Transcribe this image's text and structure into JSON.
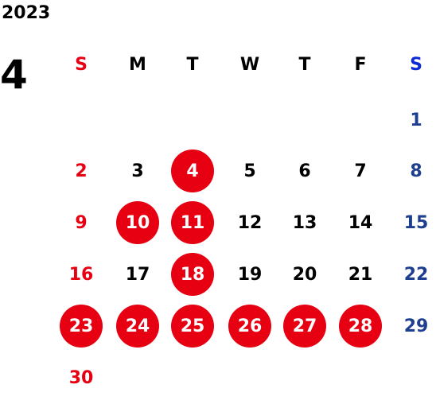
{
  "calendar": {
    "year": "2023",
    "month": "4",
    "weekdays": [
      "S",
      "M",
      "T",
      "W",
      "T",
      "F",
      "S"
    ],
    "first_weekday_index": 6,
    "days_in_month": 30,
    "highlighted_days": [
      4,
      10,
      11,
      18,
      23,
      24,
      25,
      26,
      27,
      28
    ],
    "colors": {
      "sunday": "#e60012",
      "saturday": "#1e3e8f",
      "saturday_header": "#0a2bd6",
      "weekday": "#000000",
      "highlight": "#e60012",
      "highlight_text": "#ffffff"
    }
  }
}
